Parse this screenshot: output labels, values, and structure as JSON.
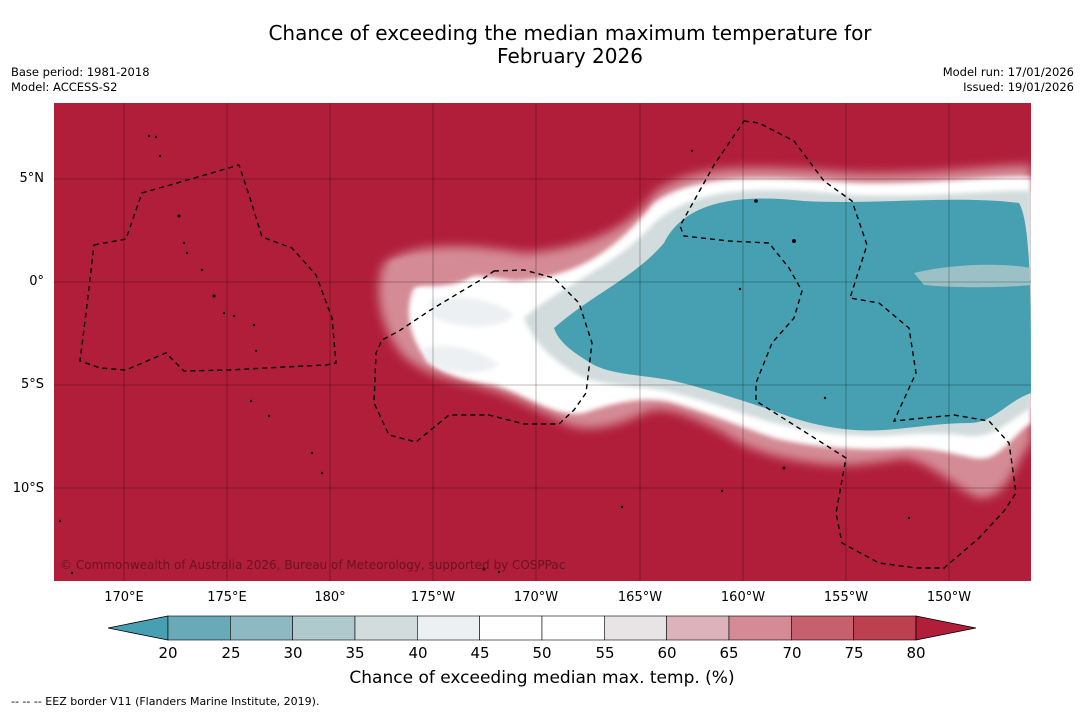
{
  "header": {
    "title_line1": "Chance of exceeding the median maximum temperature for",
    "title_line2": "February 2026",
    "base_period": "Base period: 1981-2018",
    "model": "Model: ACCESS-S2",
    "model_run": "Model run: 17/01/2026",
    "issued": "Issued: 19/01/2026"
  },
  "map": {
    "latitude_labels": [
      "5°N",
      "0°",
      "5°S",
      "10°S"
    ],
    "longitude_labels": [
      "170°E",
      "175°E",
      "180°",
      "175°W",
      "170°W",
      "165°W",
      "160°W",
      "155°W",
      "150°W"
    ],
    "copyright": "© Commonwealth of Australia 2026, Bureau of Meteorology, supported by COSPPac",
    "colors": {
      "high": "#b01e3a",
      "low": "#46a0b1"
    }
  },
  "colorbar": {
    "ticks": [
      "20",
      "25",
      "30",
      "35",
      "40",
      "45",
      "50",
      "55",
      "60",
      "65",
      "70",
      "75",
      "80"
    ],
    "colors": [
      "#46a0b1",
      "#68aab8",
      "#8db9c3",
      "#b0c9cc",
      "#d2dcdd",
      "#edf0f2",
      "#ffffff",
      "#ffffff",
      "#e8e3e5",
      "#dcb3ba",
      "#d48b95",
      "#c6606f",
      "#bc404f",
      "#b01e3a"
    ],
    "label": "Chance of exceeding median max. temp. (%)"
  },
  "footer": {
    "eez_note": "--  --  -- EEZ border V11 (Flanders Marine Institute, 2019)."
  }
}
